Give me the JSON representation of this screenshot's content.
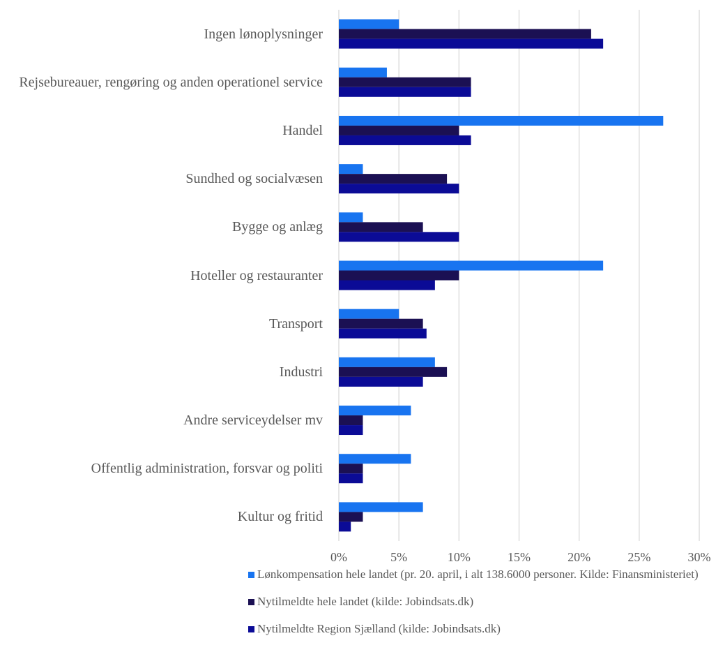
{
  "chart_data": {
    "type": "barh",
    "categories": [
      "Ingen lønoplysninger",
      "Rejsebureauer, rengøring og anden operationel service",
      "Handel",
      "Sundhed og socialvæsen",
      "Bygge og anlæg",
      "Hoteller og restauranter",
      "Transport",
      "Industri",
      "Andre serviceydelser mv",
      "Offentlig administration, forsvar og politi",
      "Kultur og fritid"
    ],
    "series": [
      {
        "name": "Lønkompensation hele landet (pr. 20. april, i alt 138.6000 personer. Kilde: Finansministeriet)",
        "color": "#1874f0",
        "values": [
          5,
          4,
          27,
          2,
          2,
          22,
          5,
          8,
          6,
          6,
          7
        ]
      },
      {
        "name": "Nytilmeldte hele landet (kilde: Jobindsats.dk)",
        "color": "#1b1053",
        "values": [
          21,
          11,
          10,
          9,
          7,
          10,
          7,
          9,
          2,
          2,
          2
        ]
      },
      {
        "name": "Nytilmeldte Region Sjælland (kilde: Jobindsats.dk)",
        "color": "#0b0b96",
        "values": [
          22,
          11,
          11,
          10,
          10,
          8,
          7.3,
          7,
          2,
          2,
          1
        ]
      }
    ],
    "xlim": [
      0,
      30
    ],
    "xticks": [
      {
        "value": 0,
        "label": "0%"
      },
      {
        "value": 5,
        "label": "5%"
      },
      {
        "value": 10,
        "label": "10%"
      },
      {
        "value": 15,
        "label": "15%"
      },
      {
        "value": 20,
        "label": "20%"
      },
      {
        "value": 25,
        "label": "25%"
      },
      {
        "value": 30,
        "label": "30%"
      }
    ],
    "grid": true,
    "legend": "bottom"
  }
}
